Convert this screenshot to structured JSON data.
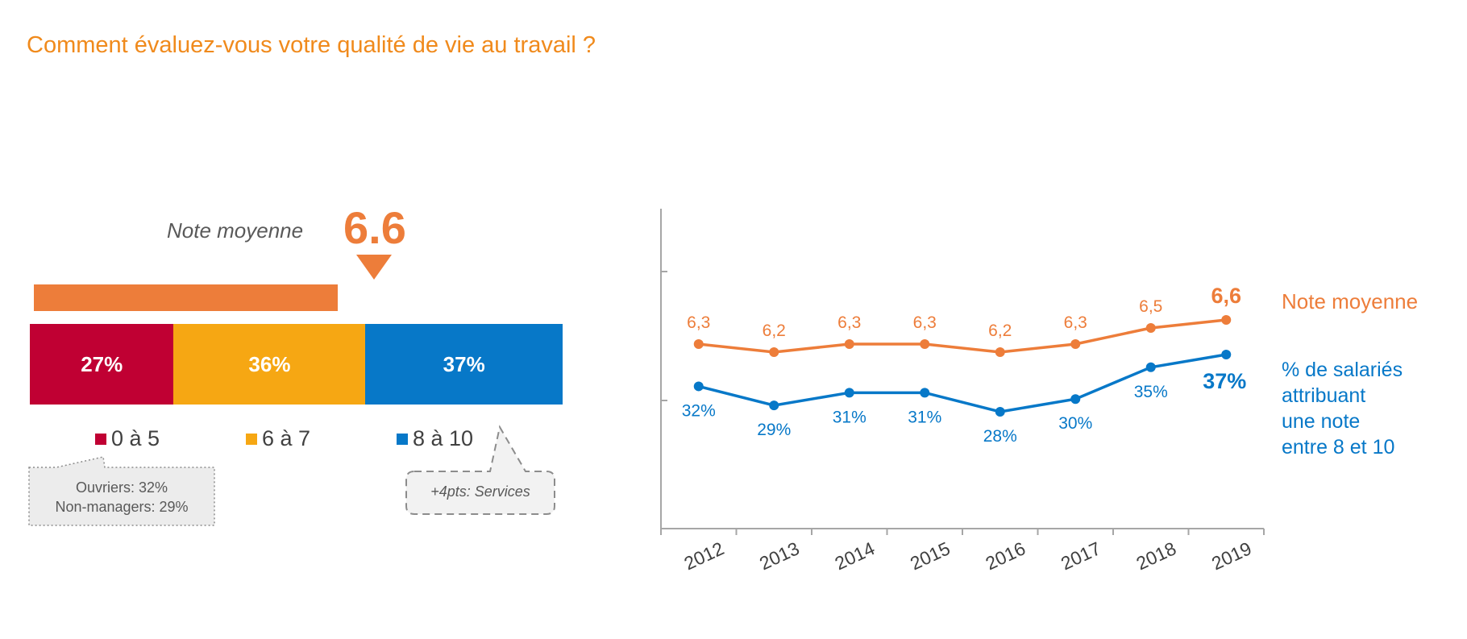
{
  "title": "Comment évaluez-vous votre qualité de vie au travail ?",
  "colors": {
    "title": "#f08a1c",
    "orange": "#ed7d3a",
    "red": "#c00033",
    "yellow": "#f6a713",
    "blue": "#0778c8",
    "grey_text": "#595959",
    "axis": "#a6a6a6"
  },
  "left_panel": {
    "note_label": "Note moyenne",
    "note_value": "6.6",
    "callout_left": {
      "line1": "Ouvriers: 32%",
      "line2": "Non-managers: 29%"
    },
    "callout_right": "+4pts: Services"
  },
  "chart_data": [
    {
      "type": "bar",
      "orientation": "horizontal-stacked",
      "categories": [
        "0 à 5",
        "6 à 7",
        "8 à 10"
      ],
      "values": [
        27,
        36,
        37
      ],
      "labels": [
        "27%",
        "36%",
        "37%"
      ],
      "colors": [
        "#c00033",
        "#f6a713",
        "#0778c8"
      ],
      "average": 6.6,
      "average_label": "Note moyenne",
      "scale": [
        0,
        10
      ]
    },
    {
      "type": "line",
      "x": [
        "2012",
        "2013",
        "2014",
        "2015",
        "2016",
        "2017",
        "2018",
        "2019"
      ],
      "series": [
        {
          "name": "Note moyenne",
          "values": [
            6.3,
            6.2,
            6.3,
            6.3,
            6.2,
            6.3,
            6.5,
            6.6
          ],
          "labels": [
            "6,3",
            "6,2",
            "6,3",
            "6,3",
            "6,2",
            "6,3",
            "6,5",
            "6,6"
          ],
          "color": "#ed7d3a"
        },
        {
          "name": "% de salariés attribuant une note entre 8 et 10",
          "values": [
            32,
            29,
            31,
            31,
            28,
            30,
            35,
            37
          ],
          "labels": [
            "32%",
            "29%",
            "31%",
            "31%",
            "28%",
            "30%",
            "35%",
            "37%"
          ],
          "color": "#0778c8"
        }
      ],
      "side_labels": {
        "orange": "Note moyenne",
        "blue": [
          "% de salariés",
          "attribuant",
          "une note",
          "entre 8 et 10"
        ]
      },
      "grid": false
    }
  ]
}
